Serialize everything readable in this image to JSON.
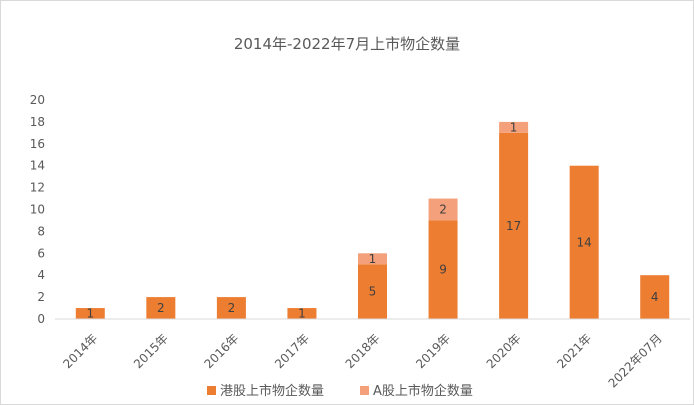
{
  "chart_data": {
    "type": "bar",
    "stacked": true,
    "title": "2014年-2022年7月上市物企数量",
    "categories": [
      "2014年",
      "2015年",
      "2016年",
      "2017年",
      "2018年",
      "2019年",
      "2020年",
      "2021年",
      "2022年07月"
    ],
    "series": [
      {
        "name": "港股上市物企数量",
        "values": [
          1,
          2,
          2,
          1,
          5,
          9,
          17,
          14,
          4
        ],
        "color": "#ed7d31"
      },
      {
        "name": "A股上市物企数量",
        "values": [
          0,
          0,
          0,
          0,
          1,
          2,
          1,
          0,
          0
        ],
        "color": "#f4a07a"
      }
    ],
    "ylim": [
      0,
      20
    ],
    "yticks": [
      "0",
      "2",
      "4",
      "6",
      "8",
      "10",
      "12",
      "14",
      "16",
      "18",
      "20"
    ],
    "grid": false,
    "legend_position": "bottom"
  }
}
